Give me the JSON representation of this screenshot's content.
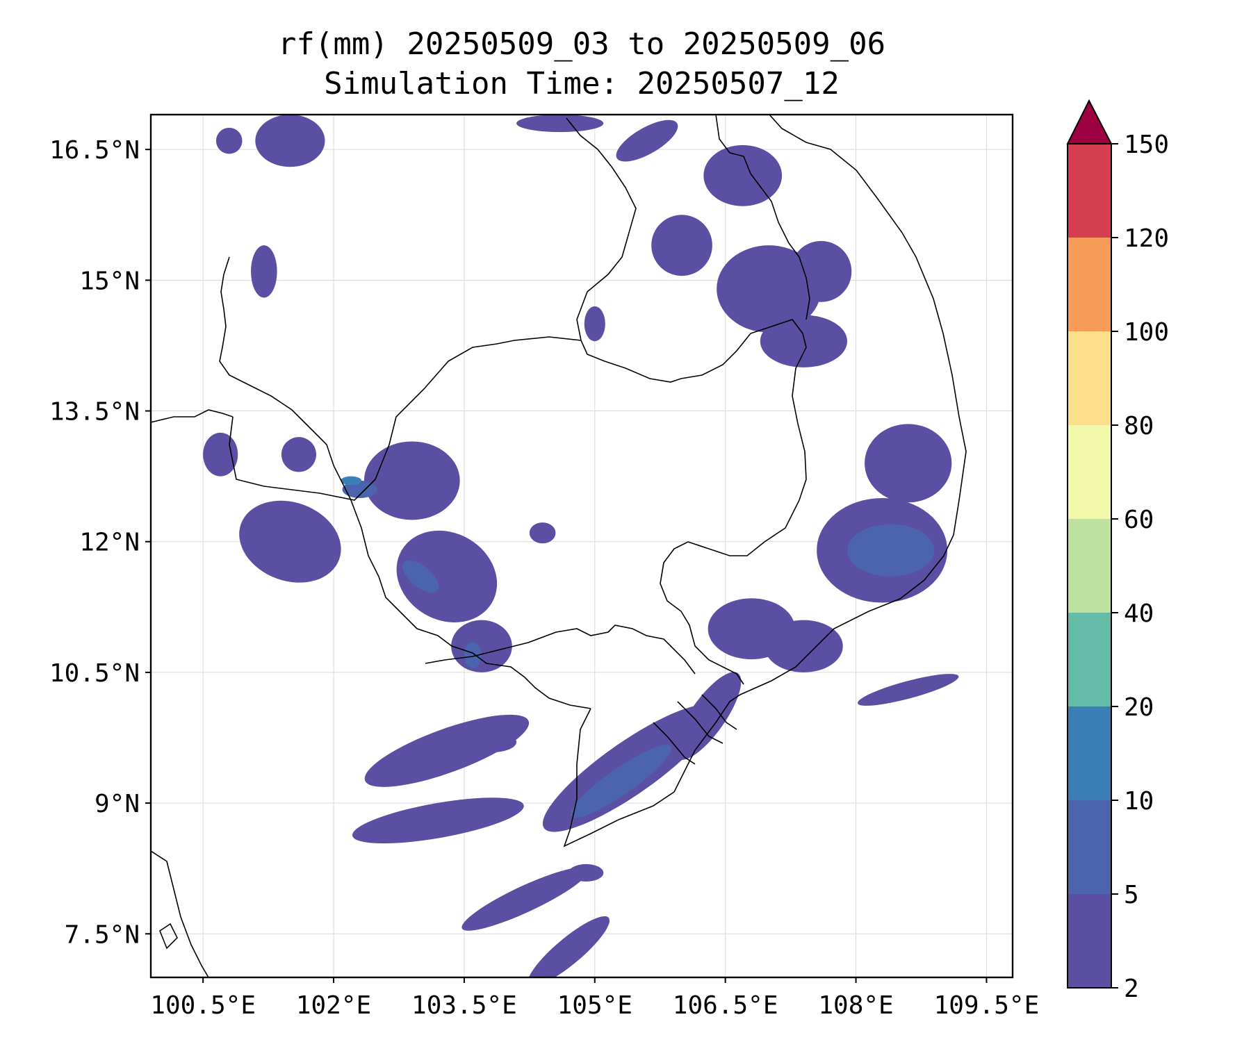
{
  "title": {
    "line1": "rf(mm) 20250509_03 to 20250509_06",
    "line2": "Simulation Time: 20250507_12"
  },
  "map": {
    "lon_range": [
      99.9,
      109.8
    ],
    "lat_range": [
      7.0,
      16.9
    ],
    "x_ticks": [
      {
        "value": 100.5,
        "label": "100.5°E"
      },
      {
        "value": 102.0,
        "label": "102°E"
      },
      {
        "value": 103.5,
        "label": "103.5°E"
      },
      {
        "value": 105.0,
        "label": "105°E"
      },
      {
        "value": 106.5,
        "label": "106.5°E"
      },
      {
        "value": 108.0,
        "label": "108°E"
      },
      {
        "value": 109.5,
        "label": "109.5°E"
      }
    ],
    "y_ticks": [
      {
        "value": 16.5,
        "label": "16.5°N"
      },
      {
        "value": 15.0,
        "label": "15°N"
      },
      {
        "value": 13.5,
        "label": "13.5°N"
      },
      {
        "value": 12.0,
        "label": "12°N"
      },
      {
        "value": 10.5,
        "label": "10.5°N"
      },
      {
        "value": 9.0,
        "label": "9°N"
      },
      {
        "value": 7.5,
        "label": "7.5°N"
      }
    ],
    "grid": true,
    "coastline_color": "#000000",
    "rain_regions": [
      {
        "level": 1,
        "lon": 102.9,
        "lat": 12.7,
        "rx": 0.55,
        "ry": 0.45,
        "rot": 0
      },
      {
        "level": 1,
        "lon": 101.5,
        "lat": 12.0,
        "rx": 0.6,
        "ry": 0.45,
        "rot": 20
      },
      {
        "level": 1,
        "lon": 103.3,
        "lat": 11.6,
        "rx": 0.6,
        "ry": 0.5,
        "rot": 30
      },
      {
        "level": 1,
        "lon": 103.7,
        "lat": 10.8,
        "rx": 0.35,
        "ry": 0.3,
        "rot": 0
      },
      {
        "level": 1,
        "lon": 103.3,
        "lat": 9.6,
        "rx": 1.0,
        "ry": 0.25,
        "rot": -20
      },
      {
        "level": 1,
        "lon": 103.2,
        "lat": 8.8,
        "rx": 1.0,
        "ry": 0.2,
        "rot": -10
      },
      {
        "level": 1,
        "lon": 104.2,
        "lat": 7.9,
        "rx": 0.8,
        "ry": 0.15,
        "rot": -25
      },
      {
        "level": 1,
        "lon": 104.7,
        "lat": 7.3,
        "rx": 0.6,
        "ry": 0.15,
        "rot": -40
      },
      {
        "level": 1,
        "lon": 105.4,
        "lat": 9.4,
        "rx": 1.2,
        "ry": 0.3,
        "rot": -35
      },
      {
        "level": 2,
        "lon": 105.3,
        "lat": 9.25,
        "rx": 0.7,
        "ry": 0.15,
        "rot": -35
      },
      {
        "level": 1,
        "lon": 106.3,
        "lat": 10.0,
        "rx": 0.6,
        "ry": 0.2,
        "rot": -55
      },
      {
        "level": 1,
        "lon": 106.8,
        "lat": 11.0,
        "rx": 0.5,
        "ry": 0.35,
        "rot": 0
      },
      {
        "level": 1,
        "lon": 107.4,
        "lat": 10.8,
        "rx": 0.45,
        "ry": 0.3,
        "rot": 0
      },
      {
        "level": 1,
        "lon": 108.3,
        "lat": 11.9,
        "rx": 0.75,
        "ry": 0.6,
        "rot": 0
      },
      {
        "level": 2,
        "lon": 108.4,
        "lat": 11.9,
        "rx": 0.5,
        "ry": 0.3,
        "rot": 0
      },
      {
        "level": 1,
        "lon": 108.6,
        "lat": 12.9,
        "rx": 0.5,
        "ry": 0.45,
        "rot": 0
      },
      {
        "level": 1,
        "lon": 107.0,
        "lat": 14.9,
        "rx": 0.6,
        "ry": 0.5,
        "rot": 0
      },
      {
        "level": 1,
        "lon": 107.4,
        "lat": 14.3,
        "rx": 0.5,
        "ry": 0.3,
        "rot": 0
      },
      {
        "level": 1,
        "lon": 106.0,
        "lat": 15.4,
        "rx": 0.35,
        "ry": 0.35,
        "rot": 0
      },
      {
        "level": 1,
        "lon": 106.7,
        "lat": 16.2,
        "rx": 0.45,
        "ry": 0.35,
        "rot": 0
      },
      {
        "level": 1,
        "lon": 107.6,
        "lat": 15.1,
        "rx": 0.35,
        "ry": 0.35,
        "rot": 0
      },
      {
        "level": 1,
        "lon": 101.5,
        "lat": 16.6,
        "rx": 0.4,
        "ry": 0.3,
        "rot": 0
      },
      {
        "level": 1,
        "lon": 104.6,
        "lat": 16.8,
        "rx": 0.5,
        "ry": 0.1,
        "rot": 0
      },
      {
        "level": 1,
        "lon": 105.6,
        "lat": 16.6,
        "rx": 0.4,
        "ry": 0.15,
        "rot": -30
      },
      {
        "level": 1,
        "lon": 101.2,
        "lat": 15.1,
        "rx": 0.15,
        "ry": 0.3,
        "rot": 0
      },
      {
        "level": 1,
        "lon": 100.8,
        "lat": 16.6,
        "rx": 0.15,
        "ry": 0.15,
        "rot": 0
      },
      {
        "level": 1,
        "lon": 100.7,
        "lat": 13.0,
        "rx": 0.2,
        "ry": 0.25,
        "rot": 0
      },
      {
        "level": 1,
        "lon": 101.6,
        "lat": 13.0,
        "rx": 0.2,
        "ry": 0.2,
        "rot": 0
      },
      {
        "level": 1,
        "lon": 104.4,
        "lat": 12.1,
        "rx": 0.15,
        "ry": 0.12,
        "rot": 0
      },
      {
        "level": 1,
        "lon": 108.6,
        "lat": 10.3,
        "rx": 0.6,
        "ry": 0.1,
        "rot": -15
      },
      {
        "level": 1,
        "lon": 103.8,
        "lat": 9.7,
        "rx": 0.3,
        "ry": 0.12,
        "rot": 0
      },
      {
        "level": 1,
        "lon": 104.9,
        "lat": 8.2,
        "rx": 0.2,
        "ry": 0.1,
        "rot": 0
      },
      {
        "level": 1,
        "lon": 105.0,
        "lat": 14.5,
        "rx": 0.12,
        "ry": 0.2,
        "rot": 0
      },
      {
        "level": 2,
        "lon": 102.3,
        "lat": 12.6,
        "rx": 0.2,
        "ry": 0.1,
        "rot": 0
      },
      {
        "level": 3,
        "lon": 102.2,
        "lat": 12.7,
        "rx": 0.12,
        "ry": 0.05,
        "rot": 0
      },
      {
        "level": 2,
        "lon": 103.0,
        "lat": 11.6,
        "rx": 0.25,
        "ry": 0.12,
        "rot": 40
      },
      {
        "level": 2,
        "lon": 103.6,
        "lat": 10.7,
        "rx": 0.1,
        "ry": 0.15,
        "rot": 0
      }
    ]
  },
  "colorbar": {
    "levels": [
      2,
      5,
      10,
      20,
      40,
      60,
      80,
      100,
      120,
      150
    ],
    "colors": [
      "#5a4fa2",
      "#4b64ad",
      "#3a7fb8",
      "#63bba8",
      "#bde2a0",
      "#f2f9aa",
      "#fddf8b",
      "#f89c5a",
      "#d53e4f"
    ],
    "extend_color": "#9e0142",
    "tick_labels": [
      "2",
      "5",
      "10",
      "20",
      "40",
      "60",
      "80",
      "100",
      "120",
      "150"
    ]
  }
}
